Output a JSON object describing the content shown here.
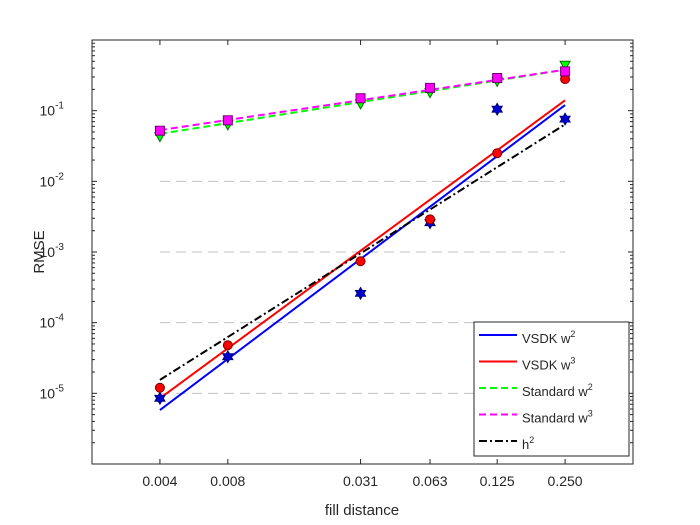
{
  "chart_data": {
    "type": "line",
    "xscale": "log",
    "yscale": "log",
    "xlabel": "fill distance",
    "ylabel": "RMSE",
    "xlim": [
      0.002,
      0.5
    ],
    "ylim": [
      1e-06,
      1
    ],
    "x_ticks": [
      0.004,
      0.008,
      0.031,
      0.063,
      0.125,
      0.25
    ],
    "x_tick_labels": [
      "0.004",
      "0.008",
      "0.031",
      "0.063",
      "0.125",
      "0.250"
    ],
    "y_ticks": [
      1e-05,
      0.0001,
      0.001,
      0.01,
      0.1
    ],
    "y_tick_labels": [
      {
        "base": "10",
        "exp": "-5"
      },
      {
        "base": "10",
        "exp": "-4"
      },
      {
        "base": "10",
        "exp": "-3"
      },
      {
        "base": "10",
        "exp": "-2"
      },
      {
        "base": "10",
        "exp": "-1"
      }
    ],
    "grid": "dashed horizontal at 1e-5, 1e-4, 1e-3, 1e-2",
    "legend_position": "bottom-right",
    "legend": [
      {
        "base": "VSDK w",
        "sup": "2",
        "color": "#0000ff",
        "style": "solid"
      },
      {
        "base": "VSDK w",
        "sup": "3",
        "color": "#ff0000",
        "style": "solid"
      },
      {
        "base": "Standard w",
        "sup": "2",
        "color": "#00ff00",
        "style": "dashed"
      },
      {
        "base": "Standard w",
        "sup": "3",
        "color": "#ff00ff",
        "style": "dashed"
      },
      {
        "base": "h",
        "sup": "2",
        "color": "#000000",
        "style": "dashdot"
      }
    ],
    "scatter_series": [
      {
        "marker": "hexagram",
        "color": "#0000cc",
        "x": [
          0.004,
          0.008,
          0.031,
          0.063,
          0.125,
          0.25
        ],
        "y": [
          8.5e-06,
          3.3e-05,
          0.00026,
          0.0026,
          0.105,
          0.076
        ]
      },
      {
        "marker": "circle",
        "color": "#ff0000",
        "x": [
          0.004,
          0.008,
          0.031,
          0.063,
          0.125,
          0.25
        ],
        "y": [
          1.2e-05,
          4.8e-05,
          0.00074,
          0.0029,
          0.025,
          0.28
        ]
      },
      {
        "marker": "triangle-down",
        "color": "#00ff00",
        "x": [
          0.004,
          0.008,
          0.031,
          0.063,
          0.125,
          0.25
        ],
        "y": [
          0.043,
          0.063,
          0.125,
          0.18,
          0.26,
          0.44
        ]
      },
      {
        "marker": "square",
        "color": "#ff00ff",
        "x": [
          0.004,
          0.008,
          0.031,
          0.063,
          0.125,
          0.25
        ],
        "y": [
          0.052,
          0.073,
          0.15,
          0.21,
          0.29,
          0.36
        ]
      }
    ],
    "fit_lines": [
      {
        "legend_index": 0,
        "x": [
          0.004,
          0.25
        ],
        "y": [
          5.8e-06,
          0.12
        ]
      },
      {
        "legend_index": 1,
        "x": [
          0.004,
          0.25
        ],
        "y": [
          8.5e-06,
          0.14
        ]
      },
      {
        "legend_index": 2,
        "x": [
          0.004,
          0.25
        ],
        "y": [
          0.047,
          0.38
        ]
      },
      {
        "legend_index": 3,
        "x": [
          0.004,
          0.25
        ],
        "y": [
          0.053,
          0.38
        ]
      },
      {
        "legend_index": 4,
        "x": [
          0.004,
          0.25
        ],
        "y": [
          1.55e-05,
          0.064
        ]
      }
    ]
  }
}
